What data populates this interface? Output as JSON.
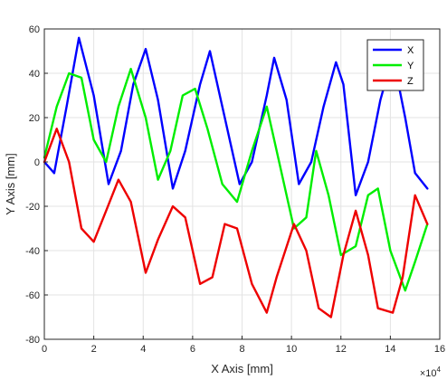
{
  "chart_data": {
    "type": "line",
    "xlabel": "X Axis [mm]",
    "ylabel": "Y Axis [mm]",
    "x_multiplier_label": "×10",
    "x_multiplier_exp": "4",
    "xlim": [
      0,
      16
    ],
    "ylim": [
      -80,
      60
    ],
    "xticks": [
      "0",
      "2",
      "4",
      "6",
      "8",
      "10",
      "12",
      "14",
      "16"
    ],
    "yticks": [
      "-80",
      "-60",
      "-40",
      "-20",
      "0",
      "20",
      "40",
      "60"
    ],
    "grid": true,
    "legend_position": "top-right",
    "series": [
      {
        "name": "X",
        "color": "#0000ff",
        "x": [
          0,
          0.4,
          0.9,
          1.4,
          2.0,
          2.6,
          3.1,
          3.6,
          4.1,
          4.6,
          5.2,
          5.7,
          6.3,
          6.7,
          7.3,
          7.9,
          8.4,
          9.0,
          9.3,
          9.8,
          10.3,
          10.8,
          11.3,
          11.8,
          12.1,
          12.6,
          13.1,
          13.6,
          14.1,
          14.6,
          15.0,
          15.5
        ],
        "y": [
          0,
          -5,
          25,
          56,
          30,
          -10,
          5,
          35,
          51,
          28,
          -12,
          5,
          35,
          50,
          20,
          -10,
          0,
          30,
          47,
          28,
          -10,
          0,
          25,
          45,
          35,
          -15,
          0,
          28,
          48,
          20,
          -5,
          -12
        ]
      },
      {
        "name": "Y",
        "color": "#00ee00",
        "x": [
          0,
          0.5,
          1.0,
          1.5,
          2.0,
          2.5,
          3.0,
          3.5,
          4.1,
          4.6,
          5.1,
          5.6,
          6.1,
          6.6,
          7.2,
          7.8,
          8.4,
          9.0,
          9.5,
          10.1,
          10.6,
          11.0,
          11.5,
          12.0,
          12.6,
          13.1,
          13.5,
          14.0,
          14.6,
          15.0,
          15.5
        ],
        "y": [
          2,
          25,
          40,
          38,
          10,
          0,
          25,
          42,
          20,
          -8,
          5,
          30,
          33,
          15,
          -10,
          -18,
          5,
          25,
          0,
          -30,
          -25,
          5,
          -15,
          -42,
          -38,
          -15,
          -12,
          -40,
          -58,
          -45,
          -28
        ]
      },
      {
        "name": "Z",
        "color": "#ee0000",
        "x": [
          0,
          0.5,
          1.0,
          1.5,
          2.0,
          2.5,
          3.0,
          3.5,
          4.1,
          4.6,
          5.2,
          5.7,
          6.3,
          6.8,
          7.3,
          7.8,
          8.4,
          9.0,
          9.4,
          10.1,
          10.6,
          11.1,
          11.6,
          12.1,
          12.6,
          13.1,
          13.5,
          14.1,
          14.5,
          15.0,
          15.5
        ],
        "y": [
          0,
          15,
          0,
          -30,
          -36,
          -22,
          -8,
          -18,
          -50,
          -35,
          -20,
          -25,
          -55,
          -52,
          -28,
          -30,
          -55,
          -68,
          -52,
          -28,
          -40,
          -66,
          -70,
          -42,
          -22,
          -42,
          -66,
          -68,
          -52,
          -15,
          -28
        ]
      }
    ]
  }
}
